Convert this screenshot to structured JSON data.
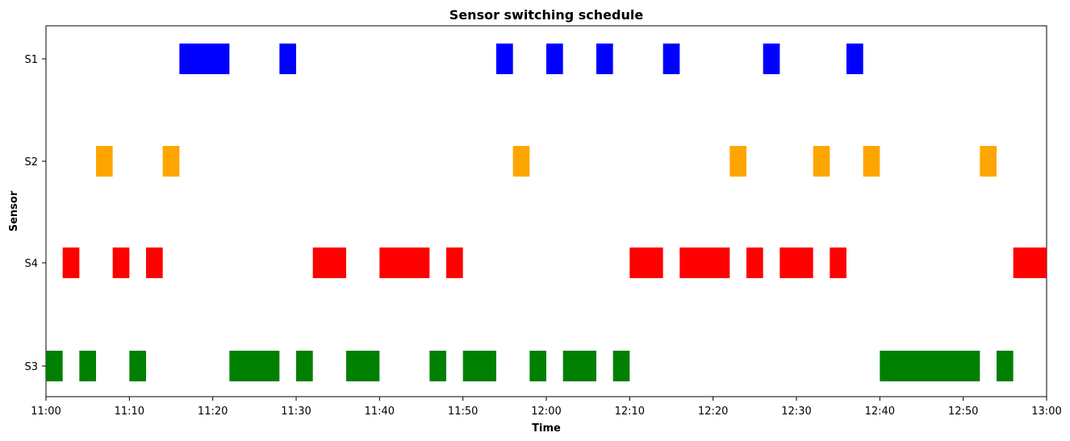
{
  "chart_data": {
    "type": "gantt",
    "title": "Sensor switching schedule",
    "xlabel": "Time",
    "ylabel": "Sensor",
    "x_domain": [
      "11:00",
      "13:00"
    ],
    "x_ticks": [
      "11:00",
      "11:10",
      "11:20",
      "11:30",
      "11:40",
      "11:50",
      "12:00",
      "12:10",
      "12:20",
      "12:30",
      "12:40",
      "12:50",
      "13:00"
    ],
    "categories": [
      "S1",
      "S2",
      "S4",
      "S3"
    ],
    "grid": false,
    "series": [
      {
        "category": "S1",
        "color": "#0000ff",
        "intervals": [
          [
            "11:16",
            "11:22"
          ],
          [
            "11:28",
            "11:30"
          ],
          [
            "11:54",
            "11:56"
          ],
          [
            "12:00",
            "12:02"
          ],
          [
            "12:06",
            "12:08"
          ],
          [
            "12:14",
            "12:16"
          ],
          [
            "12:26",
            "12:28"
          ],
          [
            "12:36",
            "12:38"
          ]
        ]
      },
      {
        "category": "S2",
        "color": "#ffa500",
        "intervals": [
          [
            "11:06",
            "11:08"
          ],
          [
            "11:14",
            "11:16"
          ],
          [
            "11:56",
            "11:58"
          ],
          [
            "12:22",
            "12:24"
          ],
          [
            "12:32",
            "12:34"
          ],
          [
            "12:38",
            "12:40"
          ],
          [
            "12:52",
            "12:54"
          ]
        ]
      },
      {
        "category": "S4",
        "color": "#ff0000",
        "intervals": [
          [
            "11:02",
            "11:04"
          ],
          [
            "11:08",
            "11:10"
          ],
          [
            "11:12",
            "11:14"
          ],
          [
            "11:32",
            "11:36"
          ],
          [
            "11:40",
            "11:46"
          ],
          [
            "11:48",
            "11:50"
          ],
          [
            "12:10",
            "12:14"
          ],
          [
            "12:16",
            "12:22"
          ],
          [
            "12:24",
            "12:26"
          ],
          [
            "12:28",
            "12:32"
          ],
          [
            "12:34",
            "12:36"
          ],
          [
            "12:56",
            "13:00"
          ]
        ]
      },
      {
        "category": "S3",
        "color": "#008000",
        "intervals": [
          [
            "11:00",
            "11:02"
          ],
          [
            "11:04",
            "11:06"
          ],
          [
            "11:10",
            "11:12"
          ],
          [
            "11:22",
            "11:28"
          ],
          [
            "11:30",
            "11:32"
          ],
          [
            "11:36",
            "11:40"
          ],
          [
            "11:46",
            "11:48"
          ],
          [
            "11:50",
            "11:54"
          ],
          [
            "11:58",
            "12:00"
          ],
          [
            "12:02",
            "12:06"
          ],
          [
            "12:08",
            "12:10"
          ],
          [
            "12:40",
            "12:52"
          ],
          [
            "12:54",
            "12:56"
          ]
        ]
      }
    ]
  }
}
